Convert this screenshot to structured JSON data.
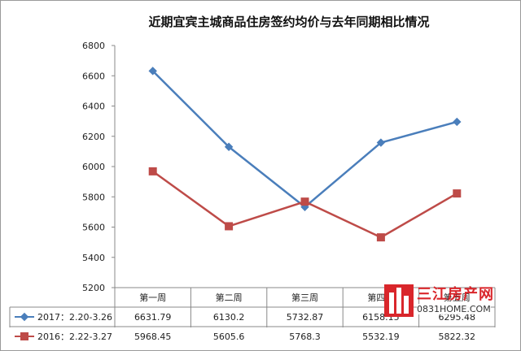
{
  "chart_data": {
    "type": "line",
    "title": "近期宜宾主城商品住房签约均价与去年同期相比情况",
    "categories": [
      "第一周",
      "第二周",
      "第三周",
      "第四周",
      "第五周"
    ],
    "ylim": [
      5200,
      6800
    ],
    "yticks": [
      5200,
      5400,
      5600,
      5800,
      6000,
      6200,
      6400,
      6600,
      6800
    ],
    "grid": false,
    "series": [
      {
        "name": "2017：2.20-3.26",
        "color": "#4a7ebb",
        "marker": "diamond",
        "values": [
          6631.79,
          6130.2,
          5732.87,
          6158.15,
          6295.48
        ],
        "labels": [
          "6631.79",
          "6130.2",
          "5732.87",
          "6158.15",
          "6295.48"
        ]
      },
      {
        "name": "2016：2.22-3.27",
        "color": "#be4b48",
        "marker": "square",
        "values": [
          5968.45,
          5605.6,
          5768.3,
          5532.19,
          5822.32
        ],
        "labels": [
          "5968.45",
          "5605.6",
          "5768.3",
          "5532.19",
          "5822.32"
        ]
      }
    ]
  },
  "watermark": {
    "brand": "三江房产网",
    "url": "0831HOME.COM",
    "brand_color": "#d9262b"
  }
}
